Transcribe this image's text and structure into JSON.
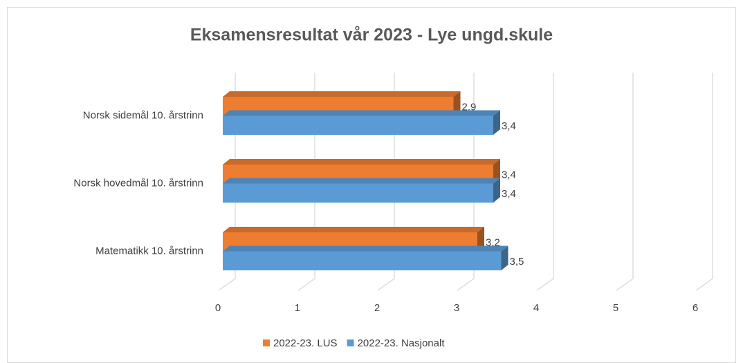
{
  "chart_data": {
    "type": "bar",
    "title": "Eksamensresultat vår 2023 - Lye ungd.skule",
    "categories": [
      "Norsk sidemål 10. årstrinn",
      "Norsk hovedmål 10. årstrinn",
      "Matematikk 10. årstrinn"
    ],
    "series": [
      {
        "name": "2022-23. LUS",
        "color": "#ed7d31",
        "values": [
          2.9,
          3.4,
          3.2
        ],
        "value_labels": [
          "2,9",
          "3,4",
          "3,2"
        ]
      },
      {
        "name": "2022-23. Nasjonalt",
        "color": "#5b9bd5",
        "values": [
          3.4,
          3.4,
          3.5
        ],
        "value_labels": [
          "3,4",
          "3,4",
          "3,5"
        ]
      }
    ],
    "xlim": [
      0,
      6
    ],
    "xticks": [
      0,
      1,
      2,
      3,
      4,
      5,
      6
    ],
    "grid": true,
    "legend": "bottom"
  }
}
